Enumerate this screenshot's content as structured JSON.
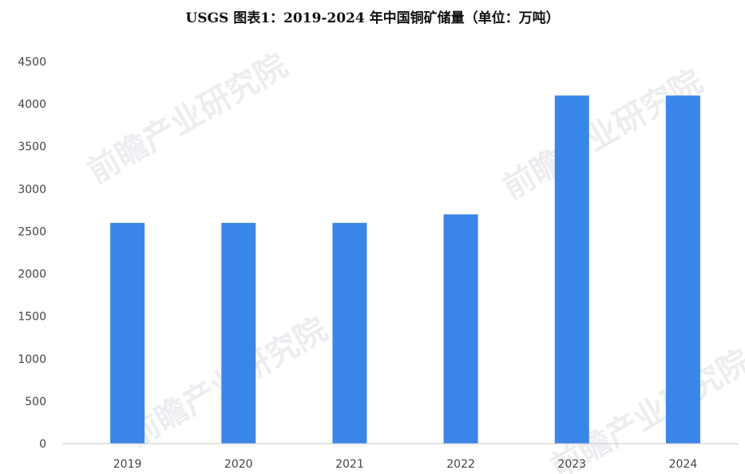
{
  "chart_data": {
    "type": "bar",
    "title": "USGS  图表1：2019-2024 年中国铜矿储量（单位：万吨）",
    "xlabel": "",
    "ylabel": "",
    "categories": [
      "2019",
      "2020",
      "2021",
      "2022",
      "2023",
      "2024"
    ],
    "values": [
      2600,
      2600,
      2600,
      2700,
      4100,
      4100
    ],
    "ylim": [
      0,
      4500
    ],
    "yticks": [
      0,
      500,
      1000,
      1500,
      2000,
      2500,
      3000,
      3500,
      4000,
      4500
    ],
    "grid": false,
    "legend": "none",
    "bar_color": "#3a86e8",
    "axis_color": "#c8c8c8"
  },
  "watermark": {
    "text": "前瞻产业研究院"
  }
}
